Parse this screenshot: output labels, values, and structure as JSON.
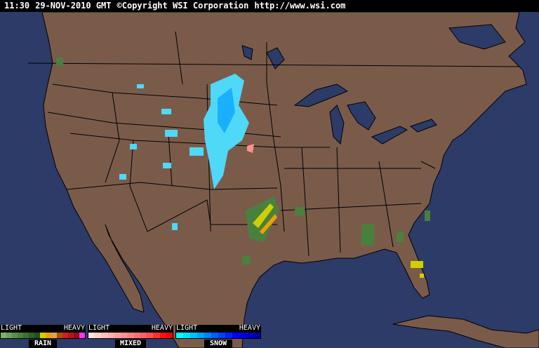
{
  "header": {
    "time": "11:30",
    "date": "29-NOV-2010 GMT",
    "copyright": "©Copyright WSI Corporation",
    "url": "http://www.wsi.com"
  },
  "colors": {
    "ocean": "#2c3b68",
    "land": "#7a5b4a",
    "borders": "#000000",
    "lakes": "#2c3b68"
  },
  "legend": [
    {
      "name": "RAIN",
      "light": "LIGHT",
      "heavy": "HEAVY",
      "colors": [
        "#7fb070",
        "#6aa05c",
        "#57904c",
        "#4a803e",
        "#3c7032",
        "#2d6026",
        "#20501c",
        "#d0d000",
        "#f0a000",
        "#e0a060",
        "#b05000",
        "#d02020",
        "#b01818",
        "#901010",
        "#ff30ff"
      ]
    },
    {
      "name": "MIXED",
      "light": "LIGHT",
      "heavy": "HEAVY",
      "colors": [
        "#ffe0e0",
        "#ffd0d0",
        "#ffc0c0",
        "#ffb0b0",
        "#ffa0a0",
        "#ff9090",
        "#ff8080",
        "#ff7070",
        "#ff6060",
        "#ff5050",
        "#ff3030",
        "#ff1010",
        "#ff0000"
      ]
    },
    {
      "name": "SNOW",
      "light": "LIGHT",
      "heavy": "HEAVY",
      "colors": [
        "#00ffff",
        "#00e0ff",
        "#00c0ff",
        "#00a0ff",
        "#0080ff",
        "#0060ff",
        "#0040ff",
        "#0020ff",
        "#0000ff",
        "#0000e0",
        "#0000c0",
        "#0000a0"
      ]
    }
  ]
}
